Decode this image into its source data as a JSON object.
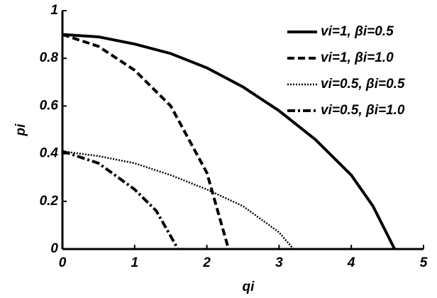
{
  "chart_data": {
    "type": "line",
    "xlabel": "qi",
    "ylabel": "pi",
    "xlim": [
      0,
      5
    ],
    "ylim": [
      0,
      1
    ],
    "xticks": [
      0,
      1,
      2,
      3,
      4,
      5
    ],
    "yticks": [
      0,
      0.2,
      0.4,
      0.6,
      0.8,
      1
    ],
    "legend": "upper right",
    "series": [
      {
        "name": "vi=1, βi=0.5",
        "color": "#000000",
        "linestyle": "solid",
        "x": [
          0,
          0.5,
          1,
          1.5,
          2,
          2.5,
          3,
          3.5,
          4,
          4.3,
          4.6
        ],
        "values": [
          0.9,
          0.89,
          0.86,
          0.82,
          0.76,
          0.68,
          0.58,
          0.46,
          0.31,
          0.18,
          0
        ]
      },
      {
        "name": "vi=1, βi=1.0",
        "color": "#000000",
        "linestyle": "dashed",
        "x": [
          0,
          0.5,
          1,
          1.5,
          2,
          2.3
        ],
        "values": [
          0.9,
          0.85,
          0.75,
          0.6,
          0.32,
          0
        ]
      },
      {
        "name": "vi=0.5, βi=0.5",
        "color": "#000000",
        "linestyle": "dotted",
        "x": [
          0,
          0.5,
          1,
          1.5,
          2,
          2.5,
          3,
          3.2
        ],
        "values": [
          0.41,
          0.39,
          0.36,
          0.31,
          0.25,
          0.18,
          0.07,
          0
        ]
      },
      {
        "name": "vi=0.5, βi=1.0",
        "color": "#000000",
        "linestyle": "dashdot",
        "x": [
          0,
          0.5,
          1,
          1.3,
          1.6
        ],
        "values": [
          0.41,
          0.36,
          0.25,
          0.16,
          0
        ]
      }
    ]
  }
}
